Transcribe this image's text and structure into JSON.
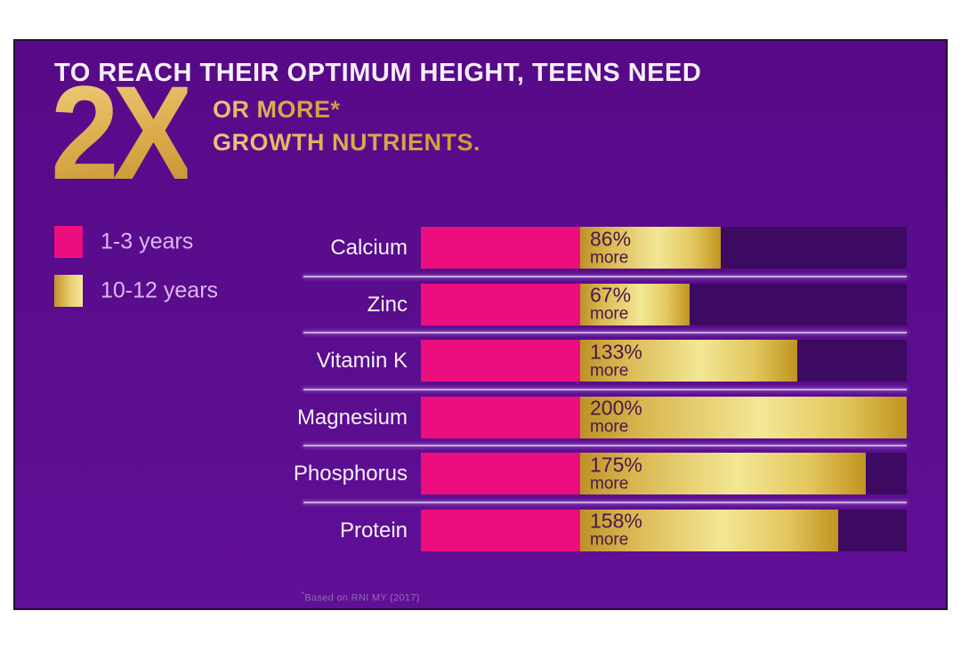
{
  "header": {
    "title": "TO REACH THEIR OPTIMUM HEIGHT, TEENS NEED",
    "multiplier": "2X",
    "subline1": "OR MORE*",
    "subline2": "GROWTH NUTRIENTS."
  },
  "legend": [
    {
      "label": "1-3 years",
      "color": "#ec0e7f"
    },
    {
      "label": "10-12 years",
      "color": "#e8cc6e"
    }
  ],
  "chart_data": {
    "type": "bar",
    "orientation": "horizontal",
    "title": "TO REACH THEIR OPTIMUM HEIGHT, TEENS NEED 2X OR MORE* GROWTH NUTRIENTS.",
    "categories": [
      "Calcium",
      "Zinc",
      "Vitamin K",
      "Magnesium",
      "Phosphorus",
      "Protein"
    ],
    "series": [
      {
        "name": "1-3 years",
        "role": "baseline RNI",
        "values": [
          100,
          100,
          100,
          100,
          100,
          100
        ],
        "color": "#ec0e7f"
      },
      {
        "name": "10-12 years",
        "role": "percent more than 1-3 years",
        "values": [
          86,
          67,
          133,
          200,
          175,
          158
        ],
        "color": "#e8cc6e"
      }
    ],
    "bar_labels": [
      "86% more",
      "67% more",
      "133% more",
      "200% more",
      "175% more",
      "158% more"
    ],
    "value_suffix": "%",
    "value_sublabel": "more",
    "xlim_percent_more": [
      0,
      200
    ],
    "grid": false,
    "legend_position": "left"
  },
  "footnote": {
    "symbol": "*",
    "text": "Based on RNI MY (2017)"
  },
  "colors": {
    "page_bg": "#ffffff",
    "card_bg": "#5a0c8c",
    "card_border": "#221034",
    "track": "#3c0a60",
    "pink": "#ec0e7f",
    "gold_dark": "#bd9227",
    "gold_light": "#f3e795",
    "separator": "#c9a9e6",
    "category_text": "#f8f0fb",
    "legend_text": "#dcb8f0",
    "value_text": "#4a1747",
    "gold_heading": "#d9a849",
    "headline_text": "#f8eef9",
    "footnote_text": "#8f6cae"
  }
}
